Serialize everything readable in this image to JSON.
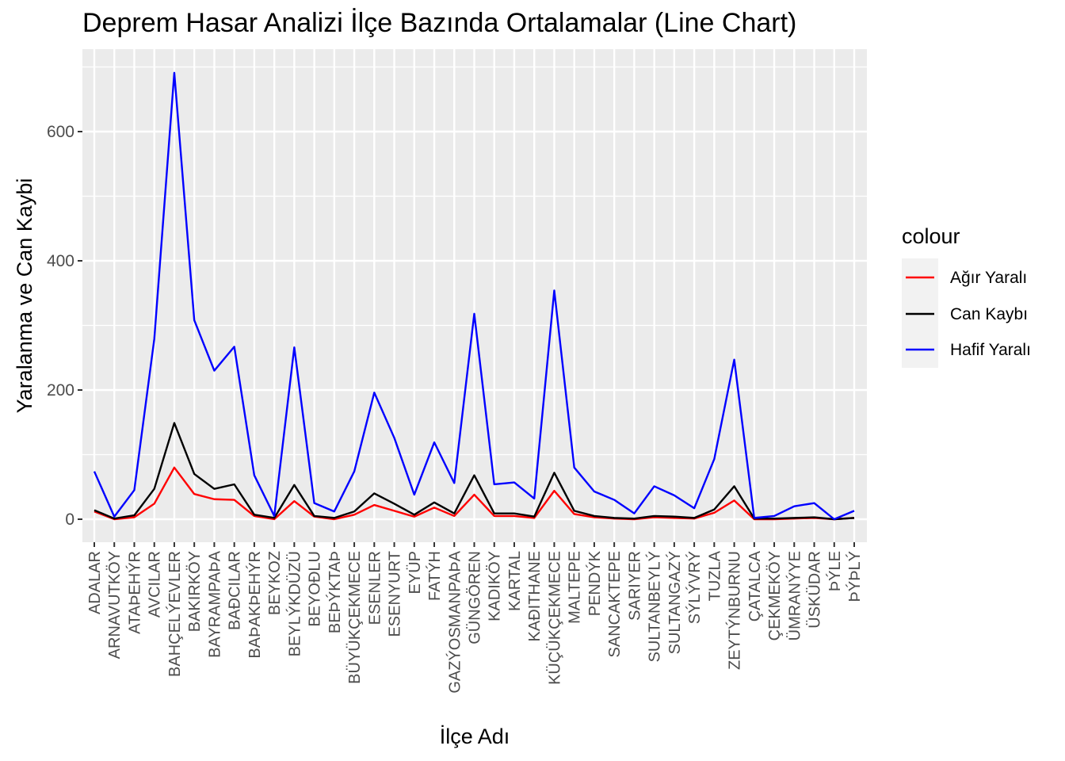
{
  "chart_data": {
    "type": "line",
    "title": "Deprem Hasar Analizi İlçe Bazında Ortalamalar (Line Chart)",
    "xlabel": "İlçe Adı",
    "ylabel": "Yaralanma ve Can Kaybi",
    "ylim": [
      -35,
      720
    ],
    "yticks": [
      0,
      200,
      400,
      600
    ],
    "grid": true,
    "legend_position": "right",
    "legend_title": "colour",
    "categories": [
      "ADALAR",
      "ARNAVUTKÖY",
      "ATAÞEHÝR",
      "AVCILAR",
      "BAHÇELÝEVLER",
      "BAKIRKÖY",
      "BAYRAMPAÞA",
      "BAÐCILAR",
      "BAÞAKÞEHÝR",
      "BEYKOZ",
      "BEYLÝKDÜZÜ",
      "BEYOÐLU",
      "BEÞÝKTAÞ",
      "BÜYÜKÇEKMECE",
      "ESENLER",
      "ESENYURT",
      "EYÜP",
      "FATÝH",
      "GAZÝOSMANPAÞA",
      "GÜNGÖREN",
      "KADIKÖY",
      "KARTAL",
      "KAÐITHANE",
      "KÜÇÜKÇEKMECE",
      "MALTEPE",
      "PENDÝK",
      "SANCAKTEPE",
      "SARIYER",
      "SULTANBEYLÝ",
      "SULTANGAZÝ",
      "SÝLÝVRÝ",
      "TUZLA",
      "ZEYTÝNBURNU",
      "ÇATALCA",
      "ÇEKMEKÖY",
      "ÜMRANÝYE",
      "ÜSKÜDAR",
      "ÞÝLE",
      "ÞÝÞLÝ"
    ],
    "series": [
      {
        "name": "Ağır Yaralı",
        "color": "#ff0000",
        "values": [
          12,
          0,
          3,
          24,
          80,
          39,
          31,
          30,
          5,
          0,
          28,
          4,
          0,
          7,
          22,
          13,
          4,
          18,
          5,
          38,
          5,
          5,
          2,
          44,
          8,
          3,
          1,
          0,
          3,
          2,
          1,
          10,
          29,
          0,
          0,
          1,
          2,
          0,
          2
        ]
      },
      {
        "name": "Can Kaybı",
        "color": "#000000",
        "values": [
          14,
          1,
          6,
          47,
          149,
          70,
          47,
          54,
          7,
          2,
          53,
          5,
          2,
          12,
          40,
          24,
          7,
          26,
          9,
          68,
          9,
          9,
          4,
          72,
          13,
          5,
          2,
          1,
          5,
          4,
          2,
          15,
          51,
          1,
          1,
          2,
          3,
          0,
          2
        ]
      },
      {
        "name": "Hafif Yaralı",
        "color": "#0000ff",
        "values": [
          74,
          4,
          45,
          279,
          691,
          308,
          230,
          267,
          68,
          5,
          266,
          25,
          12,
          74,
          196,
          126,
          38,
          119,
          56,
          318,
          54,
          57,
          32,
          354,
          80,
          43,
          30,
          9,
          51,
          37,
          17,
          93,
          247,
          2,
          5,
          20,
          25,
          0,
          13
        ]
      }
    ]
  }
}
